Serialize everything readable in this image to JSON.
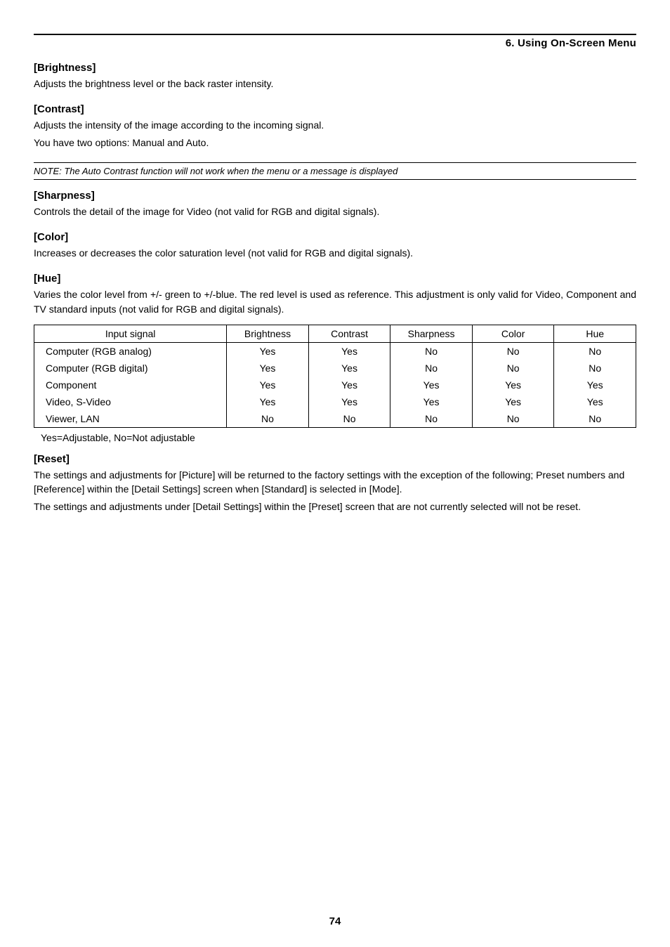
{
  "header": {
    "chapter": "6. Using On-Screen Menu"
  },
  "sections": {
    "brightness": {
      "title": "[Brightness]",
      "body": "Adjusts the brightness level or the back raster intensity."
    },
    "contrast": {
      "title": "[Contrast]",
      "body1": "Adjusts the intensity of the image according to the incoming signal.",
      "body2": "You have two options: Manual and Auto."
    },
    "note": "NOTE: The Auto Contrast function will not work when the menu or a message is displayed",
    "sharpness": {
      "title": "[Sharpness]",
      "body": "Controls the detail of the image for Video (not valid for RGB and digital signals)."
    },
    "color": {
      "title": "[Color]",
      "body": "Increases or decreases the color saturation level (not valid for RGB and digital signals)."
    },
    "hue": {
      "title": "[Hue]",
      "body": "Varies the color level from +/- green to +/-blue. The red level is used as reference. This adjustment is only valid for Video, Component and TV standard inputs (not valid for RGB and digital signals)."
    },
    "reset": {
      "title": "[Reset]",
      "body1": "The settings and adjustments for [Picture] will be returned to the factory settings with the exception of the following; Preset numbers and [Reference] within the [Detail Settings] screen when [Standard] is selected in [Mode].",
      "body2": "The settings and adjustments under [Detail Settings] within the [Preset] screen that are not currently selected will not be reset."
    }
  },
  "table": {
    "columns": [
      "Input signal",
      "Brightness",
      "Contrast",
      "Sharpness",
      "Color",
      "Hue"
    ],
    "col_widths": [
      "32%",
      "13.6%",
      "13.6%",
      "13.6%",
      "13.6%",
      "13.6%"
    ],
    "rows": [
      [
        "Computer (RGB analog)",
        "Yes",
        "Yes",
        "No",
        "No",
        "No"
      ],
      [
        "Computer (RGB digital)",
        "Yes",
        "Yes",
        "No",
        "No",
        "No"
      ],
      [
        "Component",
        "Yes",
        "Yes",
        "Yes",
        "Yes",
        "Yes"
      ],
      [
        "Video, S-Video",
        "Yes",
        "Yes",
        "Yes",
        "Yes",
        "Yes"
      ],
      [
        "Viewer, LAN",
        "No",
        "No",
        "No",
        "No",
        "No"
      ]
    ],
    "caption": "Yes=Adjustable, No=Not adjustable"
  },
  "page_number": "74"
}
